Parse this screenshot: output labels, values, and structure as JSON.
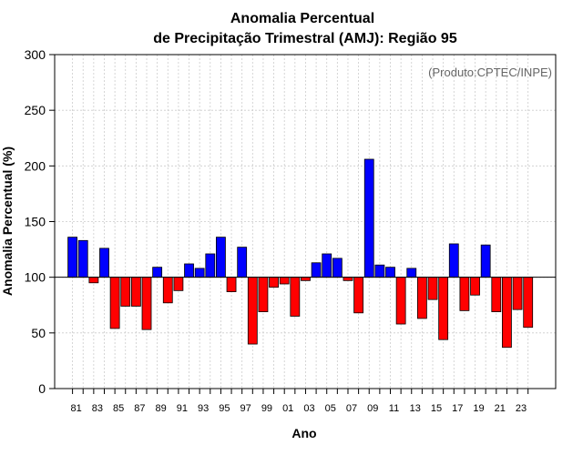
{
  "chart_data": {
    "type": "bar",
    "title_line1": "Anomalia Percentual",
    "title_line2": "de Precipitação Trimestral (AMJ): Região 95",
    "xlabel": "Ano",
    "ylabel": "Anomalia Percentual (%)",
    "credit": "(Produto:CPTEC/INPE)",
    "ylim": [
      0,
      300
    ],
    "baseline": 100,
    "yticks": [
      0,
      50,
      100,
      150,
      200,
      250,
      300
    ],
    "tick_labels": [
      "81",
      "83",
      "85",
      "87",
      "89",
      "91",
      "93",
      "95",
      "97",
      "99",
      "01",
      "03",
      "05",
      "07",
      "09",
      "11",
      "13",
      "15",
      "17",
      "19",
      "21",
      "23"
    ],
    "categories": [
      "1981",
      "1982",
      "1983",
      "1984",
      "1985",
      "1986",
      "1987",
      "1988",
      "1989",
      "1990",
      "1991",
      "1992",
      "1993",
      "1994",
      "1995",
      "1996",
      "1997",
      "1998",
      "1999",
      "2000",
      "2001",
      "2002",
      "2003",
      "2004",
      "2005",
      "2006",
      "2007",
      "2008",
      "2009",
      "2010",
      "2011",
      "2012",
      "2013",
      "2014",
      "2015",
      "2016",
      "2017",
      "2018",
      "2019",
      "2020",
      "2021",
      "2022",
      "2023",
      "2024"
    ],
    "values": [
      136,
      133,
      95,
      126,
      54,
      74,
      74,
      53,
      109,
      77,
      88,
      112,
      108,
      121,
      136,
      87,
      127,
      40,
      69,
      91,
      94,
      65,
      97,
      113,
      121,
      117,
      97,
      68,
      206,
      111,
      109,
      58,
      108,
      63,
      80,
      44,
      130,
      70,
      84,
      129,
      69,
      37,
      71,
      55
    ],
    "colors": {
      "above": "#0000ff",
      "below": "#ff0000",
      "grid": "#cccccc",
      "edge": "#000000"
    }
  }
}
